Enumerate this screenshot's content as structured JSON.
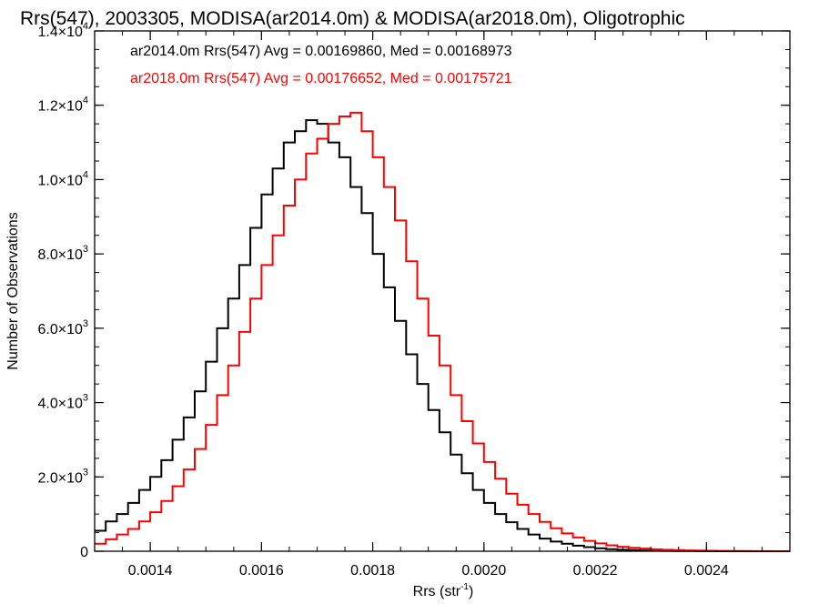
{
  "chart_data": {
    "type": "line",
    "title": "Rrs(547), 2003305, MODISA(ar2014.0m) & MODISA(ar2018.0m), Oligotrophic",
    "xlabel": "Rrs (str",
    "xlabel_sup": "-1",
    "xlabel_close": ")",
    "ylabel": "Number of Observations",
    "xlim": [
      0.0013,
      0.00255
    ],
    "ylim": [
      0,
      14000
    ],
    "grid": false,
    "xticks": [
      {
        "value": 0.0014,
        "label": "0.0014"
      },
      {
        "value": 0.0016,
        "label": "0.0016"
      },
      {
        "value": 0.0018,
        "label": "0.0018"
      },
      {
        "value": 0.002,
        "label": "0.0020"
      },
      {
        "value": 0.0022,
        "label": "0.0022"
      },
      {
        "value": 0.0024,
        "label": "0.0024"
      }
    ],
    "yticks": [
      {
        "value": 0,
        "mantissa": "0",
        "exponent": ""
      },
      {
        "value": 2000,
        "mantissa": "2.0×10",
        "exponent": "3"
      },
      {
        "value": 4000,
        "mantissa": "4.0×10",
        "exponent": "3"
      },
      {
        "value": 6000,
        "mantissa": "6.0×10",
        "exponent": "3"
      },
      {
        "value": 8000,
        "mantissa": "8.0×10",
        "exponent": "3"
      },
      {
        "value": 10000,
        "mantissa": "1.0×10",
        "exponent": "4"
      },
      {
        "value": 12000,
        "mantissa": "1.2×10",
        "exponent": "4"
      },
      {
        "value": 14000,
        "mantissa": "1.4×10",
        "exponent": "4"
      }
    ],
    "annotations": [
      {
        "text": "ar2014.0m Rrs(547) Avg = 0.00169860, Med = 0.00168973",
        "color": "#000000"
      },
      {
        "text": "ar2018.0m Rrs(547) Avg = 0.00176652, Med = 0.00175721",
        "color": "#ff0000"
      }
    ],
    "series": [
      {
        "color": "#000000",
        "x": [
          0.0013,
          0.00132,
          0.00134,
          0.00136,
          0.00138,
          0.0014,
          0.00142,
          0.00144,
          0.00146,
          0.00148,
          0.0015,
          0.00152,
          0.00154,
          0.00156,
          0.00158,
          0.0016,
          0.00162,
          0.00164,
          0.00166,
          0.00168,
          0.0017,
          0.00172,
          0.00174,
          0.00176,
          0.00178,
          0.0018,
          0.00182,
          0.00184,
          0.00186,
          0.00188,
          0.0019,
          0.00192,
          0.00194,
          0.00196,
          0.00198,
          0.002,
          0.00202,
          0.00204,
          0.00206,
          0.00208,
          0.0021,
          0.00212,
          0.00214,
          0.00216,
          0.00218,
          0.0022,
          0.00222,
          0.00224,
          0.00226,
          0.00228,
          0.0023,
          0.00232,
          0.00234,
          0.00236,
          0.00238,
          0.0024,
          0.00242,
          0.00244,
          0.00246,
          0.00248,
          0.0025,
          0.00252,
          0.00254,
          0.00255
        ],
        "y": [
          550,
          800,
          1000,
          1300,
          1650,
          2000,
          2450,
          3000,
          3600,
          4300,
          5100,
          6000,
          6800,
          7700,
          8700,
          9600,
          10300,
          11000,
          11300,
          11600,
          11500,
          11000,
          10600,
          9800,
          9100,
          8000,
          7100,
          6200,
          5300,
          4500,
          3800,
          3200,
          2600,
          2100,
          1650,
          1300,
          1000,
          780,
          600,
          450,
          340,
          260,
          200,
          150,
          110,
          80,
          55,
          40,
          30,
          20,
          15,
          10,
          6,
          4,
          3,
          2,
          1,
          0,
          0,
          0,
          0,
          0,
          0,
          0
        ]
      },
      {
        "color": "#ff0000",
        "x": [
          0.0013,
          0.00132,
          0.00134,
          0.00136,
          0.00138,
          0.0014,
          0.00142,
          0.00144,
          0.00146,
          0.00148,
          0.0015,
          0.00152,
          0.00154,
          0.00156,
          0.00158,
          0.0016,
          0.00162,
          0.00164,
          0.00166,
          0.00168,
          0.0017,
          0.00172,
          0.00174,
          0.00176,
          0.00178,
          0.0018,
          0.00182,
          0.00184,
          0.00186,
          0.00188,
          0.0019,
          0.00192,
          0.00194,
          0.00196,
          0.00198,
          0.002,
          0.00202,
          0.00204,
          0.00206,
          0.00208,
          0.0021,
          0.00212,
          0.00214,
          0.00216,
          0.00218,
          0.0022,
          0.00222,
          0.00224,
          0.00226,
          0.00228,
          0.0023,
          0.00232,
          0.00234,
          0.00236,
          0.00238,
          0.0024,
          0.00242,
          0.00244,
          0.00246,
          0.00248,
          0.0025,
          0.00252,
          0.00254,
          0.00255
        ],
        "y": [
          200,
          320,
          450,
          600,
          800,
          1050,
          1350,
          1750,
          2200,
          2750,
          3400,
          4200,
          5000,
          5900,
          6800,
          7700,
          8500,
          9300,
          10000,
          10700,
          11100,
          11500,
          11700,
          11800,
          11300,
          10600,
          9800,
          8900,
          7800,
          6800,
          5800,
          5000,
          4200,
          3500,
          2900,
          2400,
          1950,
          1550,
          1250,
          1000,
          790,
          620,
          480,
          370,
          280,
          210,
          160,
          120,
          90,
          70,
          52,
          40,
          30,
          22,
          16,
          12,
          9,
          6,
          4,
          3,
          2,
          1,
          1,
          0
        ]
      }
    ]
  }
}
